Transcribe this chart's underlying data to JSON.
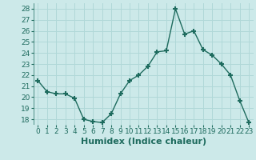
{
  "x": [
    0,
    1,
    2,
    3,
    4,
    5,
    6,
    7,
    8,
    9,
    10,
    11,
    12,
    13,
    14,
    15,
    16,
    17,
    18,
    19,
    20,
    21,
    22,
    23
  ],
  "y": [
    21.5,
    20.5,
    20.3,
    20.3,
    19.9,
    18.0,
    17.8,
    17.7,
    18.5,
    20.3,
    21.5,
    22.0,
    22.8,
    24.1,
    24.2,
    28.0,
    25.7,
    26.0,
    24.3,
    23.8,
    23.0,
    22.0,
    19.7,
    17.7
  ],
  "xlabel": "Humidex (Indice chaleur)",
  "ylim": [
    17.5,
    28.5
  ],
  "yticks": [
    18,
    19,
    20,
    21,
    22,
    23,
    24,
    25,
    26,
    27,
    28
  ],
  "xticks": [
    0,
    1,
    2,
    3,
    4,
    5,
    6,
    7,
    8,
    9,
    10,
    11,
    12,
    13,
    14,
    15,
    16,
    17,
    18,
    19,
    20,
    21,
    22,
    23
  ],
  "line_color": "#1e6b5e",
  "marker": "+",
  "bg_color": "#cce9e9",
  "grid_color": "#b0d8d8",
  "xlabel_fontsize": 8,
  "tick_fontsize": 6.5,
  "linewidth": 1.0,
  "markersize": 5,
  "markeredgewidth": 1.5
}
